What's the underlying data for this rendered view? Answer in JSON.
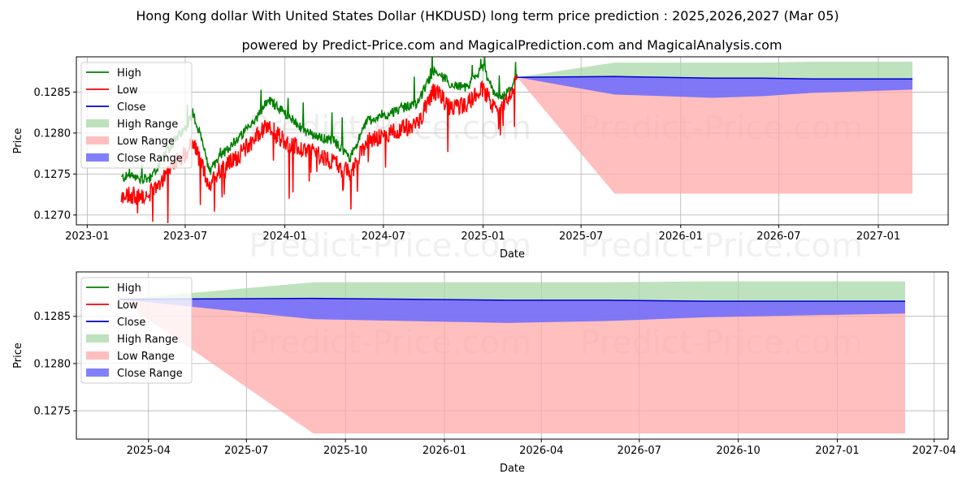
{
  "title": "Hong Kong dollar With United States Dollar (HKDUSD) long term price prediction : 2025,2026,2027 (Mar 05)",
  "subtitle": "powered by Predict-Price.com and MagicalPrediction.com and MagicalAnalysis.com",
  "watermark": "Predict-Price.com",
  "colors": {
    "high": "#008000",
    "low": "#ff0000",
    "close": "#0000cc",
    "high_range": "#a8d8a8",
    "low_range": "#ffaaaa",
    "close_range": "#6a6aff"
  },
  "chart_data": [
    {
      "type": "line",
      "title": "",
      "xlabel": "Date",
      "ylabel": "Price",
      "xlim": [
        "2022-12-12",
        "2027-05-10"
      ],
      "ylim": [
        0.12688,
        0.12893
      ],
      "x_ticks": [
        "2023-01",
        "2023-07",
        "2024-01",
        "2024-07",
        "2025-01",
        "2025-07",
        "2026-01",
        "2026-07",
        "2027-01"
      ],
      "y_ticks": [
        0.127,
        0.1275,
        0.128,
        0.1285
      ],
      "legend": [
        "High",
        "Low",
        "Close",
        "High Range",
        "Low Range",
        "Close Range"
      ],
      "legend_position": "top-left",
      "historical": {
        "x_range": [
          "2023-03-05",
          "2025-03-05"
        ],
        "high_anchors": [
          [
            "2023-03-05",
            0.12745
          ],
          [
            "2023-03-20",
            0.12748
          ],
          [
            "2023-04-10",
            0.12742
          ],
          [
            "2023-05-01",
            0.12746
          ],
          [
            "2023-05-20",
            0.1277
          ],
          [
            "2023-06-10",
            0.1279
          ],
          [
            "2023-07-01",
            0.12805
          ],
          [
            "2023-07-15",
            0.12825
          ],
          [
            "2023-08-01",
            0.1279
          ],
          [
            "2023-08-15",
            0.12752
          ],
          [
            "2023-09-01",
            0.1277
          ],
          [
            "2023-10-01",
            0.1279
          ],
          [
            "2023-11-01",
            0.1281
          ],
          [
            "2023-12-01",
            0.1284
          ],
          [
            "2024-01-01",
            0.12825
          ],
          [
            "2024-02-01",
            0.12805
          ],
          [
            "2024-03-01",
            0.12795
          ],
          [
            "2024-04-01",
            0.1279
          ],
          [
            "2024-05-01",
            0.1277
          ],
          [
            "2024-06-01",
            0.12815
          ],
          [
            "2024-07-01",
            0.1282
          ],
          [
            "2024-08-01",
            0.1283
          ],
          [
            "2024-09-01",
            0.12835
          ],
          [
            "2024-10-01",
            0.12875
          ],
          [
            "2024-10-15",
            0.1287
          ],
          [
            "2024-11-01",
            0.1286
          ],
          [
            "2024-12-01",
            0.12855
          ],
          [
            "2025-01-01",
            0.1288
          ],
          [
            "2025-01-20",
            0.1285
          ],
          [
            "2025-02-10",
            0.12845
          ],
          [
            "2025-03-05",
            0.1287
          ]
        ],
        "low_anchors": [
          [
            "2023-03-05",
            0.1272
          ],
          [
            "2023-03-20",
            0.12725
          ],
          [
            "2023-04-10",
            0.12722
          ],
          [
            "2023-05-01",
            0.12728
          ],
          [
            "2023-05-20",
            0.12745
          ],
          [
            "2023-06-10",
            0.12765
          ],
          [
            "2023-07-01",
            0.12775
          ],
          [
            "2023-07-15",
            0.1279
          ],
          [
            "2023-08-01",
            0.1276
          ],
          [
            "2023-08-15",
            0.12735
          ],
          [
            "2023-09-01",
            0.12755
          ],
          [
            "2023-10-01",
            0.12768
          ],
          [
            "2023-11-01",
            0.1279
          ],
          [
            "2023-12-01",
            0.1281
          ],
          [
            "2024-01-01",
            0.1279
          ],
          [
            "2024-02-01",
            0.1278
          ],
          [
            "2024-03-01",
            0.12775
          ],
          [
            "2024-04-01",
            0.12765
          ],
          [
            "2024-05-01",
            0.1275
          ],
          [
            "2024-06-01",
            0.1279
          ],
          [
            "2024-07-01",
            0.12795
          ],
          [
            "2024-08-01",
            0.12805
          ],
          [
            "2024-09-01",
            0.1281
          ],
          [
            "2024-10-01",
            0.1285
          ],
          [
            "2024-10-15",
            0.12845
          ],
          [
            "2024-11-01",
            0.1283
          ],
          [
            "2024-12-01",
            0.12835
          ],
          [
            "2025-01-01",
            0.12855
          ],
          [
            "2025-01-20",
            0.1283
          ],
          [
            "2025-02-10",
            0.12835
          ],
          [
            "2025-03-05",
            0.12865
          ]
        ]
      },
      "forecast": {
        "x": [
          "2025-03-05",
          "2025-09-01",
          "2026-03-01",
          "2026-06-01",
          "2026-09-01",
          "2027-03-05"
        ],
        "high_range_top": [
          0.12868,
          0.12886,
          0.12886,
          0.12886,
          0.12887,
          0.12887
        ],
        "low_range_bottom": [
          0.12868,
          0.12726,
          0.12726,
          0.12726,
          0.12726,
          0.12726
        ],
        "close": [
          0.12868,
          0.12869,
          0.12867,
          0.12867,
          0.12866,
          0.12866
        ],
        "close_range_low": [
          0.12868,
          0.12847,
          0.12843,
          0.12845,
          0.12849,
          0.12853
        ],
        "close_range_high": [
          0.12868,
          0.12869,
          0.12867,
          0.12867,
          0.12866,
          0.12866
        ]
      }
    },
    {
      "type": "area",
      "title": "",
      "xlabel": "Date",
      "ylabel": "Price",
      "xlim": [
        "2025-01-24",
        "2027-04-14"
      ],
      "ylim": [
        0.1272,
        0.12897
      ],
      "x_ticks": [
        "2025-04",
        "2025-07",
        "2025-10",
        "2026-01",
        "2026-04",
        "2026-07",
        "2026-10",
        "2027-01",
        "2027-04"
      ],
      "y_ticks": [
        0.1275,
        0.128,
        0.1285
      ],
      "legend": [
        "High",
        "Low",
        "Close",
        "High Range",
        "Low Range",
        "Close Range"
      ],
      "legend_position": "top-left",
      "forecast": {
        "x": [
          "2025-03-05",
          "2025-09-01",
          "2026-03-01",
          "2026-06-01",
          "2026-09-01",
          "2027-03-05"
        ],
        "high_range_top": [
          0.12868,
          0.12886,
          0.12886,
          0.12886,
          0.12887,
          0.12887
        ],
        "low_range_bottom": [
          0.12868,
          0.12726,
          0.12726,
          0.12726,
          0.12726,
          0.12726
        ],
        "close": [
          0.12868,
          0.12869,
          0.12867,
          0.12867,
          0.12866,
          0.12866
        ],
        "close_range_low": [
          0.12868,
          0.12847,
          0.12843,
          0.12845,
          0.12849,
          0.12853
        ],
        "close_range_high": [
          0.12868,
          0.12869,
          0.12867,
          0.12867,
          0.12866,
          0.12866
        ]
      }
    }
  ]
}
